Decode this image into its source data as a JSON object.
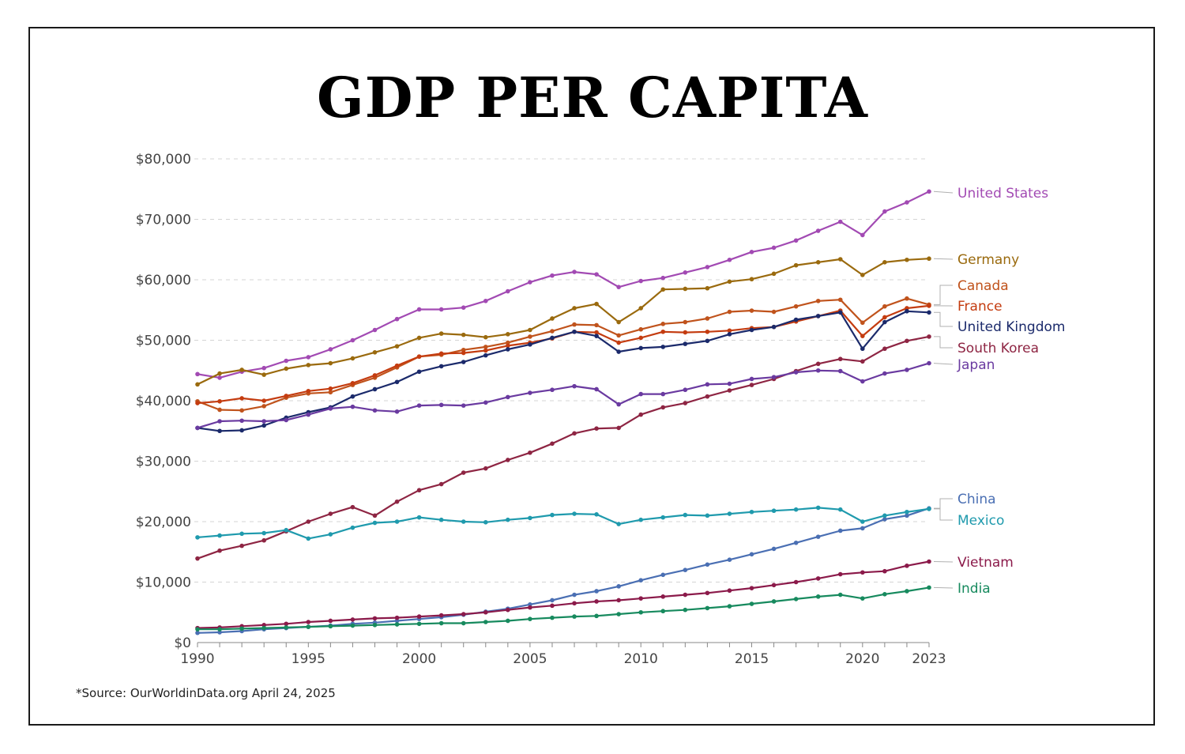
{
  "title": "GDP PER CAPITA",
  "source": "*Source: OurWorldinData.org April 24, 2025",
  "chart_data": {
    "type": "line",
    "title": "GDP PER CAPITA",
    "xlabel": "",
    "ylabel": "",
    "xlim": [
      1990,
      2023
    ],
    "ylim": [
      0,
      80000
    ],
    "yticks": [
      0,
      10000,
      20000,
      30000,
      40000,
      50000,
      60000,
      70000,
      80000
    ],
    "ytick_labels": [
      "$0",
      "$10,000",
      "$20,000",
      "$30,000",
      "$40,000",
      "$50,000",
      "$60,000",
      "$70,000",
      "$80,000"
    ],
    "xticks": [
      1990,
      1995,
      2000,
      2005,
      2010,
      2015,
      2020,
      2023
    ],
    "xtick_labels": [
      "1990",
      "1995",
      "2000",
      "2005",
      "2010",
      "2015",
      "2020",
      "2023"
    ],
    "grid": true,
    "legend": "right, labels at line ends",
    "x": [
      1990,
      1991,
      1992,
      1993,
      1994,
      1995,
      1996,
      1997,
      1998,
      1999,
      2000,
      2001,
      2002,
      2003,
      2004,
      2005,
      2006,
      2007,
      2008,
      2009,
      2010,
      2011,
      2012,
      2013,
      2014,
      2015,
      2016,
      2017,
      2018,
      2019,
      2020,
      2021,
      2022,
      2023
    ],
    "series": [
      {
        "name": "United States",
        "color": "#a24ab3",
        "values": [
          44400,
          43800,
          44800,
          45400,
          46600,
          47200,
          48500,
          50000,
          51700,
          53500,
          55100,
          55100,
          55400,
          56500,
          58100,
          59600,
          60700,
          61300,
          60900,
          58800,
          59800,
          60300,
          61200,
          62100,
          63300,
          64600,
          65300,
          66500,
          68100,
          69600,
          67400,
          71300,
          72800,
          74600
        ]
      },
      {
        "name": "Germany",
        "color": "#9a6a0e",
        "values": [
          42700,
          44500,
          45100,
          44300,
          45300,
          45900,
          46200,
          47000,
          48000,
          49000,
          50400,
          51100,
          50900,
          50500,
          51000,
          51700,
          53600,
          55300,
          56000,
          53000,
          55300,
          58400,
          58500,
          58600,
          59700,
          60100,
          61000,
          62400,
          62900,
          63400,
          60800,
          62900,
          63300,
          63500
        ]
      },
      {
        "name": "Canada",
        "color": "#c0531c",
        "values": [
          39900,
          38500,
          38400,
          39100,
          40500,
          41200,
          41400,
          42600,
          43800,
          45500,
          47300,
          47600,
          48400,
          48900,
          49600,
          50600,
          51500,
          52600,
          52500,
          50800,
          51800,
          52700,
          53000,
          53600,
          54700,
          54900,
          54700,
          55600,
          56500,
          56700,
          52900,
          55600,
          56900,
          55900
        ]
      },
      {
        "name": "France",
        "color": "#c43c10",
        "values": [
          39600,
          39900,
          40400,
          40000,
          40800,
          41600,
          42000,
          42900,
          44200,
          45800,
          47300,
          47800,
          47900,
          48300,
          49100,
          49600,
          50300,
          51400,
          51300,
          49600,
          50400,
          51400,
          51300,
          51400,
          51600,
          52000,
          52200,
          53100,
          54000,
          54900,
          50700,
          53800,
          55300,
          55700
        ]
      },
      {
        "name": "United Kingdom",
        "color": "#1b2a6b",
        "values": [
          35500,
          35000,
          35100,
          35900,
          37200,
          38100,
          38900,
          40700,
          41900,
          43100,
          44800,
          45700,
          46400,
          47500,
          48500,
          49300,
          50400,
          51400,
          50700,
          48100,
          48700,
          48900,
          49400,
          49900,
          51000,
          51700,
          52200,
          53400,
          54000,
          54600,
          48600,
          53000,
          54800,
          54600
        ]
      },
      {
        "name": "South Korea",
        "color": "#8e2543",
        "values": [
          13900,
          15200,
          16000,
          16900,
          18400,
          20000,
          21300,
          22400,
          21000,
          23300,
          25200,
          26200,
          28100,
          28800,
          30200,
          31400,
          32900,
          34600,
          35400,
          35500,
          37700,
          38900,
          39600,
          40700,
          41700,
          42600,
          43600,
          44900,
          46100,
          46900,
          46500,
          48600,
          49900,
          50600
        ]
      },
      {
        "name": "Japan",
        "color": "#6a3aa0",
        "values": [
          35500,
          36600,
          36700,
          36600,
          36800,
          37700,
          38700,
          39000,
          38400,
          38200,
          39200,
          39300,
          39200,
          39700,
          40600,
          41300,
          41800,
          42400,
          41900,
          39400,
          41100,
          41100,
          41800,
          42700,
          42800,
          43600,
          43900,
          44700,
          45000,
          44900,
          43200,
          44500,
          45100,
          46200
        ]
      },
      {
        "name": "China",
        "color": "#4a6fb3",
        "values": [
          1600,
          1700,
          1900,
          2200,
          2400,
          2600,
          2800,
          3100,
          3300,
          3600,
          3900,
          4200,
          4600,
          5100,
          5600,
          6300,
          7000,
          7900,
          8500,
          9300,
          10300,
          11200,
          12000,
          12900,
          13700,
          14600,
          15500,
          16500,
          17500,
          18500,
          18900,
          20400,
          21000,
          22200
        ]
      },
      {
        "name": "Mexico",
        "color": "#1f9aad",
        "values": [
          17400,
          17700,
          18000,
          18100,
          18600,
          17200,
          17900,
          19000,
          19800,
          20000,
          20700,
          20300,
          20000,
          19900,
          20300,
          20600,
          21100,
          21300,
          21200,
          19600,
          20300,
          20700,
          21100,
          21000,
          21300,
          21600,
          21800,
          22000,
          22300,
          22000,
          20000,
          21000,
          21600,
          22100
        ]
      },
      {
        "name": "Vietnam",
        "color": "#8b1a4a",
        "values": [
          2400,
          2500,
          2700,
          2900,
          3100,
          3400,
          3600,
          3800,
          4000,
          4100,
          4300,
          4500,
          4700,
          5000,
          5400,
          5800,
          6100,
          6500,
          6800,
          7000,
          7300,
          7600,
          7900,
          8200,
          8600,
          9000,
          9500,
          10000,
          10600,
          11300,
          11600,
          11800,
          12700,
          13400
        ]
      },
      {
        "name": "India",
        "color": "#178a5e",
        "values": [
          2200,
          2200,
          2300,
          2400,
          2500,
          2600,
          2700,
          2800,
          2900,
          3000,
          3100,
          3200,
          3200,
          3400,
          3600,
          3900,
          4100,
          4300,
          4400,
          4700,
          5000,
          5200,
          5400,
          5700,
          6000,
          6400,
          6800,
          7200,
          7600,
          7900,
          7300,
          8000,
          8500,
          9100
        ]
      }
    ]
  }
}
